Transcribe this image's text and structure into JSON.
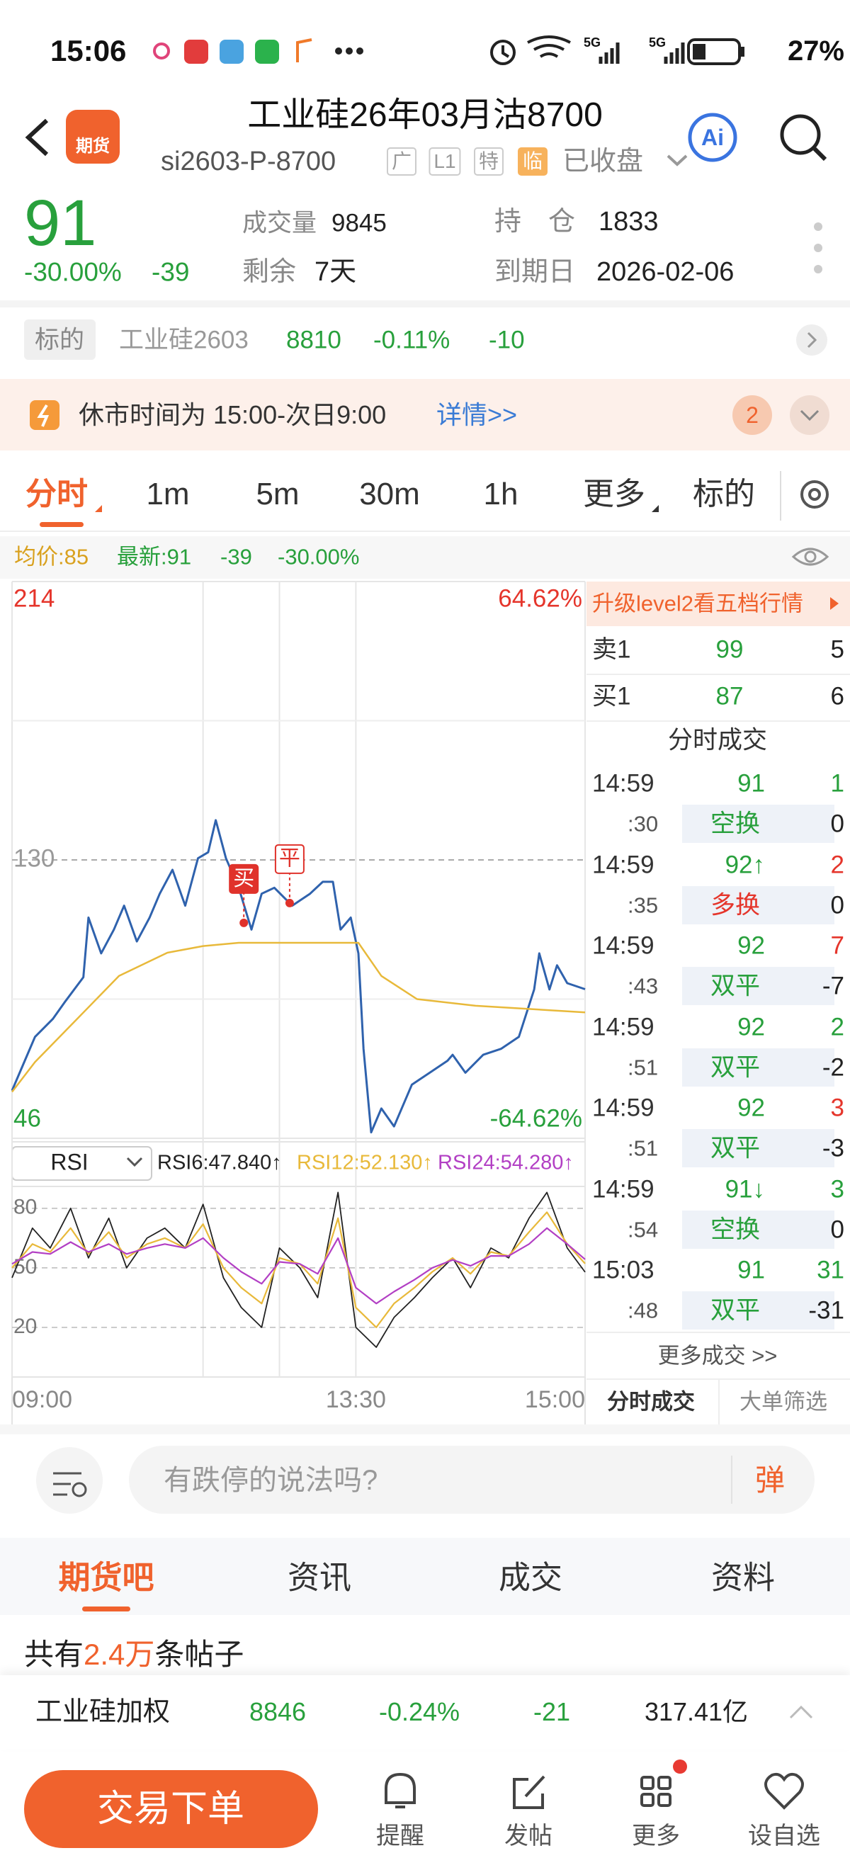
{
  "status_bar": {
    "time": "15:06",
    "network": [
      "5G",
      "5G"
    ],
    "battery": "27%"
  },
  "header": {
    "logo": "期货",
    "title": "工业硅26年03月沽8700",
    "code": "si2603-P-8700",
    "badges": [
      "广",
      "L1",
      "特",
      "临"
    ],
    "status": "已收盘",
    "ai": "Ai"
  },
  "quote": {
    "price": "91",
    "change_pct": "-30.00%",
    "change": "-39",
    "volume_label": "成交量",
    "volume": "9845",
    "oi_label": "持　仓",
    "oi": "1833",
    "remaining_label": "剩余",
    "remaining": "7天",
    "expiry_label": "到期日",
    "expiry": "2026-02-06"
  },
  "underlying": {
    "label": "标的",
    "name": "工业硅2603",
    "price": "8810",
    "change_pct": "-0.11%",
    "change": "-10"
  },
  "notice": {
    "text": "休市时间为 15:00-次日9:00",
    "link": "详情>>",
    "count": "2"
  },
  "period_tabs": [
    "分时",
    "1m",
    "5m",
    "30m",
    "1h",
    "更多",
    "标的"
  ],
  "stats": {
    "avg": "均价:85",
    "latest": "最新:91",
    "change": "-39",
    "change_pct": "-30.00%"
  },
  "chart_data": [
    {
      "type": "line",
      "xlim": [
        0,
        225
      ],
      "xticks": [
        {
          "value": 0,
          "label": "09:00"
        },
        {
          "value": 75,
          "label": null
        },
        {
          "value": 105,
          "label": null
        },
        {
          "value": 135,
          "label": "13:30"
        },
        {
          "value": 225,
          "label": "15:00"
        }
      ],
      "ylim": [
        46,
        214
      ],
      "yticks": [
        46,
        {
          "value": 88,
          "label": null
        },
        130,
        {
          "value": 172,
          "label": null
        },
        214
      ],
      "y2lim": [
        -64.62,
        64.62
      ],
      "y2ticks": [
        {
          "value": -64.62,
          "label": "-64.62%"
        },
        {
          "value": 64.62,
          "label": "64.62%"
        }
      ],
      "series": [
        {
          "color": "#2f62ad",
          "x": [
            0,
            5,
            9,
            16,
            21,
            28,
            30,
            35,
            40,
            44,
            49,
            54,
            58,
            63,
            68,
            73,
            77,
            80,
            84,
            89,
            94,
            98,
            103,
            110,
            117,
            122,
            126,
            129,
            133,
            136,
            138,
            141,
            145,
            150,
            157,
            164,
            171,
            173,
            178,
            185,
            192,
            199,
            205,
            207,
            211,
            214,
            218,
            225
          ],
          "values": [
            60.4,
            69.4,
            76.6,
            82,
            87.4,
            94.6,
            112.6,
            101.8,
            109,
            116.2,
            105.4,
            112.6,
            119.8,
            127,
            116.2,
            130.5,
            132.3,
            142,
            130.5,
            121.6,
            109,
            119.8,
            121.6,
            116.2,
            119.8,
            123.4,
            123.4,
            109,
            112.6,
            101.8,
            73,
            47.8,
            55,
            49.6,
            62.2,
            65.8,
            69.4,
            71.2,
            65.8,
            71.2,
            73,
            76.6,
            90.9,
            101.8,
            90.9,
            98.2,
            92.8,
            91
          ]
        },
        {
          "color": "#e8b93a",
          "x": [
            0,
            9,
            23,
            42,
            61,
            75,
            89,
            136,
            145,
            159,
            182,
            225
          ],
          "values": [
            60,
            69,
            80,
            95,
            102,
            104,
            105,
            105,
            95,
            88,
            86,
            84
          ]
        }
      ],
      "annotations": [
        {
          "text": "买",
          "x": 91,
          "y": 111,
          "style": "filled",
          "color": "#e0322b"
        },
        {
          "text": "平",
          "x": 109,
          "y": 117,
          "style": "outline",
          "color": "#e0322b"
        }
      ]
    },
    {
      "type": "line",
      "indicator": "RSI",
      "xlim": [
        0,
        225
      ],
      "ylim": [
        -5,
        91
      ],
      "yticks": [
        20,
        50,
        80
      ],
      "x": [
        0,
        8,
        15,
        23,
        30,
        38,
        45,
        53,
        60,
        68,
        75,
        83,
        90,
        98,
        105,
        113,
        120,
        128,
        135,
        143,
        150,
        158,
        165,
        173,
        180,
        188,
        195,
        203,
        210,
        218,
        225
      ],
      "series": [
        {
          "name": "RSI6:47.840↑",
          "color": "#222222",
          "values": [
            45,
            70,
            60,
            80,
            55,
            75,
            50,
            65,
            70,
            60,
            82,
            45,
            30,
            20,
            60,
            50,
            35,
            88,
            20,
            10,
            25,
            35,
            45,
            55,
            40,
            60,
            55,
            75,
            88,
            60,
            47.84
          ]
        },
        {
          "name": "RSI12:52.130↑",
          "color": "#e8b93a",
          "values": [
            50,
            62,
            58,
            70,
            57,
            68,
            55,
            62,
            65,
            60,
            72,
            50,
            40,
            32,
            55,
            52,
            42,
            75,
            30,
            20,
            32,
            40,
            48,
            55,
            47,
            58,
            56,
            68,
            78,
            62,
            52.13
          ]
        },
        {
          "name": "RSI24:54.280↑",
          "color": "#b23fc4",
          "values": [
            52,
            58,
            57,
            63,
            58,
            62,
            57,
            60,
            62,
            60,
            65,
            55,
            48,
            42,
            53,
            52,
            47,
            65,
            40,
            32,
            38,
            44,
            50,
            54,
            51,
            56,
            56,
            62,
            70,
            62,
            54.28
          ]
        }
      ]
    }
  ],
  "order_book": {
    "banner": "升级level2看五档行情",
    "rows": [
      {
        "label": "卖1",
        "price": "99",
        "volume": "5"
      },
      {
        "label": "买1",
        "price": "87",
        "volume": "6"
      }
    ]
  },
  "trades": {
    "title": "分时成交",
    "rows": [
      {
        "time": "14:59",
        "second": ":30",
        "price": "91",
        "volume": "1",
        "volume_color": "#28a03c",
        "type": "空换",
        "type_color": "#28a03c",
        "type_volume": "0"
      },
      {
        "time": "14:59",
        "second": ":35",
        "price": "92↑",
        "volume": "2",
        "volume_color": "#e5352b",
        "type": "多换",
        "type_color": "#e5352b",
        "type_volume": "0"
      },
      {
        "time": "14:59",
        "second": ":43",
        "price": "92",
        "volume": "7",
        "volume_color": "#e5352b",
        "type": "双平",
        "type_color": "#28a03c",
        "type_volume": "-7"
      },
      {
        "time": "14:59",
        "second": ":51",
        "price": "92",
        "volume": "2",
        "volume_color": "#28a03c",
        "type": "双平",
        "type_color": "#28a03c",
        "type_volume": "-2"
      },
      {
        "time": "14:59",
        "second": ":51",
        "price": "92",
        "volume": "3",
        "volume_color": "#e5352b",
        "type": "双平",
        "type_color": "#28a03c",
        "type_volume": "-3"
      },
      {
        "time": "14:59",
        "second": ":54",
        "price": "91↓",
        "volume": "3",
        "volume_color": "#28a03c",
        "type": "空换",
        "type_color": "#28a03c",
        "type_volume": "0"
      },
      {
        "time": "15:03",
        "second": ":48",
        "price": "91",
        "volume": "31",
        "volume_color": "#28a03c",
        "type": "双平",
        "type_color": "#28a03c",
        "type_volume": "-31"
      }
    ],
    "more": "更多成交 >>",
    "tabs": [
      "分时成交",
      "大单筛选"
    ]
  },
  "comment": {
    "placeholder": "有跌停的说法吗?",
    "danmaku": "弹"
  },
  "tabs": [
    "期货吧",
    "资讯",
    "成交",
    "资料"
  ],
  "posts": {
    "prefix": "共有",
    "count": "2.4万",
    "suffix": "条帖子"
  },
  "ticker": {
    "name": "工业硅加权",
    "price": "8846",
    "change_pct": "-0.24%",
    "change": "-21",
    "turnover": "317.41亿"
  },
  "bottom_nav": {
    "trade_button": "交易下单",
    "items": [
      "提醒",
      "发帖",
      "更多",
      "设自选"
    ]
  }
}
